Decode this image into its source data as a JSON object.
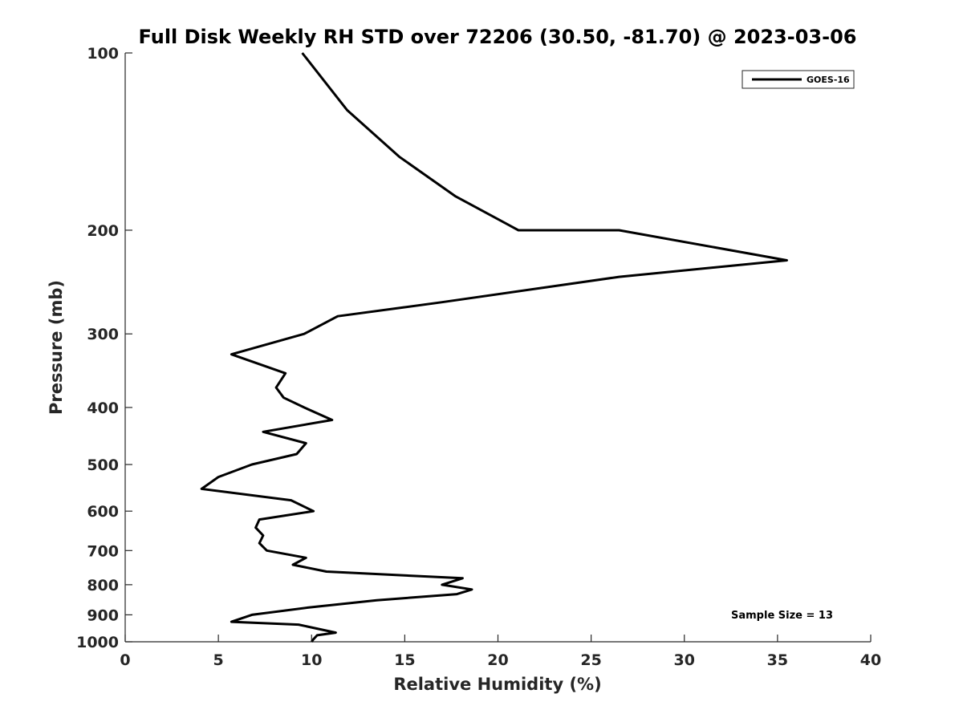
{
  "chart_data": {
    "type": "line",
    "title": "Full Disk Weekly RH STD over 72206 (30.50, -81.70) @ 2023-03-06",
    "xlabel": "Relative Humidity (%)",
    "ylabel": "Pressure (mb)",
    "xlim": [
      0,
      40
    ],
    "ylim": [
      100,
      1000
    ],
    "y_scale": "log",
    "y_reversed": true,
    "x_ticks": [
      0,
      5,
      10,
      15,
      20,
      25,
      30,
      35,
      40
    ],
    "y_ticks": [
      100,
      200,
      300,
      400,
      500,
      600,
      700,
      800,
      900,
      1000
    ],
    "grid": false,
    "legend_position": "top-right",
    "annotation": "Sample Size = 13",
    "series": [
      {
        "name": "GOES-16",
        "color": "#000000",
        "points": [
          [
            9.5,
            100
          ],
          [
            11.9,
            125
          ],
          [
            14.7,
            150
          ],
          [
            17.7,
            175
          ],
          [
            21.1,
            200
          ],
          [
            26.5,
            200
          ],
          [
            35.5,
            225
          ],
          [
            26.5,
            240
          ],
          [
            17.0,
            265
          ],
          [
            11.4,
            280
          ],
          [
            9.6,
            300
          ],
          [
            5.7,
            325
          ],
          [
            8.6,
            350
          ],
          [
            8.1,
            370
          ],
          [
            8.5,
            385
          ],
          [
            9.6,
            400
          ],
          [
            11.1,
            420
          ],
          [
            7.4,
            440
          ],
          [
            9.7,
            460
          ],
          [
            9.2,
            480
          ],
          [
            6.8,
            500
          ],
          [
            5.0,
            525
          ],
          [
            4.1,
            550
          ],
          [
            8.9,
            575
          ],
          [
            10.1,
            600
          ],
          [
            7.2,
            620
          ],
          [
            7.0,
            640
          ],
          [
            7.4,
            660
          ],
          [
            7.2,
            680
          ],
          [
            7.6,
            700
          ],
          [
            9.7,
            720
          ],
          [
            9.0,
            740
          ],
          [
            10.8,
            760
          ],
          [
            18.1,
            780
          ],
          [
            17.0,
            800
          ],
          [
            18.6,
            815
          ],
          [
            17.8,
            830
          ],
          [
            13.5,
            850
          ],
          [
            9.8,
            875
          ],
          [
            6.8,
            900
          ],
          [
            5.7,
            925
          ],
          [
            9.3,
            935
          ],
          [
            10.3,
            950
          ],
          [
            11.3,
            965
          ],
          [
            10.3,
            975
          ],
          [
            10.1,
            990
          ],
          [
            10.0,
            1000
          ]
        ]
      }
    ]
  }
}
